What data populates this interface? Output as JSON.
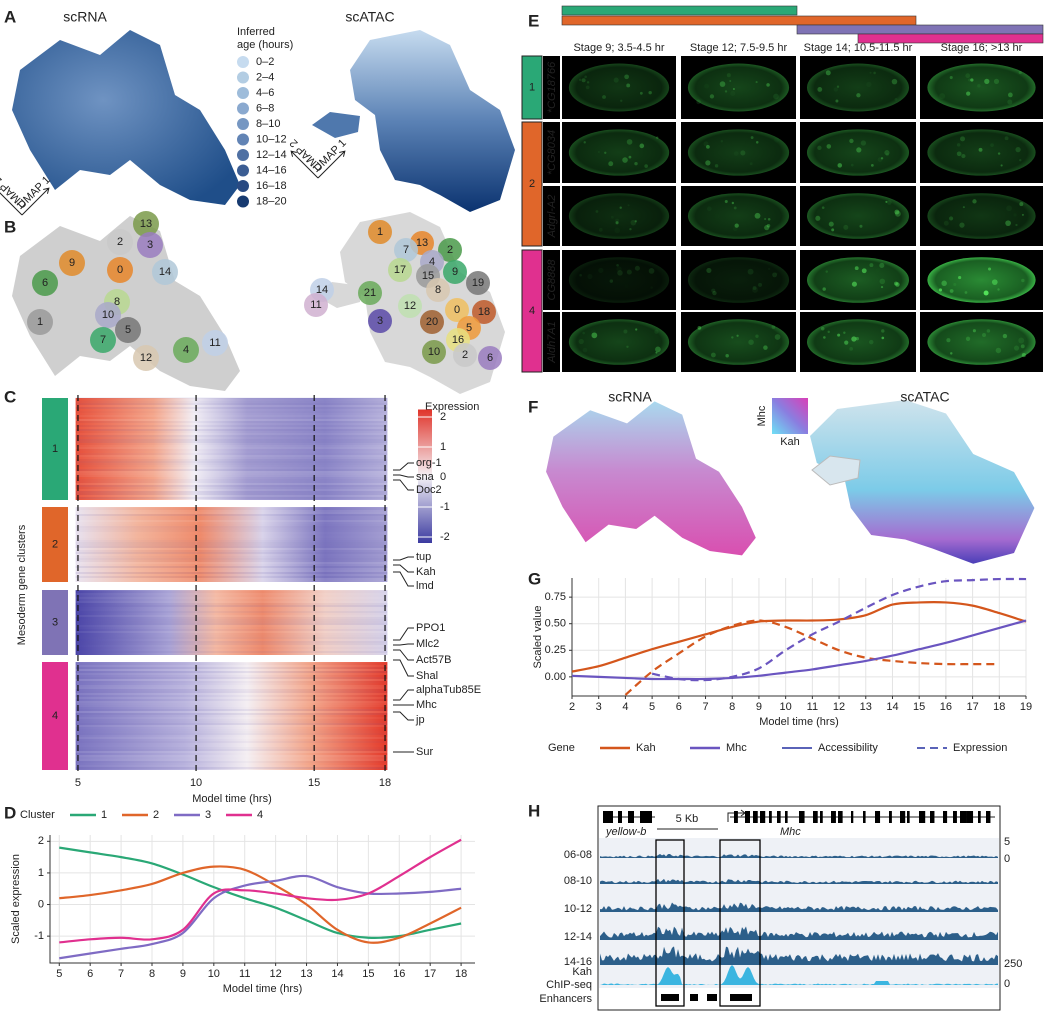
{
  "panel_labels": [
    "A",
    "B",
    "C",
    "D",
    "E",
    "F",
    "G",
    "H"
  ],
  "panel_a": {
    "titles": [
      "scRNA",
      "scATAC"
    ],
    "legend_title": [
      "Inferred",
      "age (hours)"
    ],
    "legend": [
      {
        "label": "0–2",
        "color": "#c6dbef"
      },
      {
        "label": "2–4",
        "color": "#b3cde3"
      },
      {
        "label": "4–6",
        "color": "#9ebcda"
      },
      {
        "label": "6–8",
        "color": "#8aa9cf"
      },
      {
        "label": "8–10",
        "color": "#7697c2"
      },
      {
        "label": "10–12",
        "color": "#6284b5"
      },
      {
        "label": "12–14",
        "color": "#4f70a3"
      },
      {
        "label": "14–16",
        "color": "#3b5d93"
      },
      {
        "label": "16–18",
        "color": "#294a82"
      },
      {
        "label": "18–20",
        "color": "#173a70"
      }
    ],
    "axes": [
      "UMAP 1",
      "UMAP 2"
    ]
  },
  "panel_b": {
    "scrna_clusters": [
      "13",
      "2",
      "3",
      "9",
      "0",
      "14",
      "6",
      "8",
      "10",
      "1",
      "7",
      "5",
      "12",
      "4",
      "11"
    ],
    "scatac_clusters": [
      "1",
      "13",
      "7",
      "2",
      "17",
      "4",
      "15",
      "9",
      "19",
      "8",
      "21",
      "14",
      "11",
      "12",
      "0",
      "18",
      "3",
      "20",
      "5",
      "16",
      "10",
      "2",
      "6"
    ]
  },
  "chart_data": [
    {
      "type": "heatmap",
      "xlabel": "Model time (hrs)",
      "ylabel": "Mesoderm gene clusters",
      "xlim": [
        4.9,
        18.1
      ],
      "xticks": [
        5,
        10,
        15,
        18
      ],
      "clusters": [
        {
          "name": "1",
          "color": "#2aa876"
        },
        {
          "name": "2",
          "color": "#e0662a"
        },
        {
          "name": "3",
          "color": "#7f73b5"
        },
        {
          "name": "4",
          "color": "#e0308f"
        }
      ],
      "genes": [
        "org-1",
        "sna",
        "Doc2",
        "tup",
        "Kah",
        "lmd",
        "PPO1",
        "Mlc2",
        "Act57B",
        "Shal",
        "alphaTub85E",
        "Mhc",
        "jp",
        "Sur"
      ],
      "colorbar": {
        "title": "Expression",
        "lim": [
          -2.2,
          2.25
        ],
        "ticks": [
          2,
          1,
          0,
          -1,
          -2
        ]
      }
    },
    {
      "type": "line",
      "xlabel": "Model time (hrs)",
      "ylabel": "Scaled expression",
      "legend_title": "Cluster",
      "xlim": [
        4.7,
        18.45
      ],
      "ylim": [
        -1.85,
        2.2
      ],
      "xticks": [
        5,
        6,
        7,
        8,
        9,
        10,
        11,
        12,
        13,
        14,
        15,
        16,
        17,
        18
      ],
      "yticks": [
        -1,
        0,
        1,
        2
      ],
      "grid": true,
      "x": [
        5,
        6,
        7,
        8,
        9,
        10,
        11,
        12,
        13,
        14,
        15,
        16,
        17,
        18
      ],
      "series": [
        {
          "name": "1",
          "color": "#2aa876",
          "values": [
            1.8,
            1.65,
            1.5,
            1.3,
            0.95,
            0.55,
            0.2,
            -0.1,
            -0.5,
            -0.9,
            -1.05,
            -1.0,
            -0.8,
            -0.6
          ]
        },
        {
          "name": "2",
          "color": "#e0662a",
          "values": [
            0.2,
            0.3,
            0.45,
            0.65,
            1.0,
            1.2,
            1.1,
            0.6,
            0.0,
            -0.8,
            -1.2,
            -1.05,
            -0.6,
            -0.1
          ]
        },
        {
          "name": "3",
          "color": "#7f6bc4",
          "values": [
            -1.7,
            -1.55,
            -1.4,
            -1.25,
            -0.9,
            0.2,
            0.6,
            0.75,
            0.9,
            0.55,
            0.35,
            0.35,
            0.4,
            0.5
          ]
        },
        {
          "name": "4",
          "color": "#e0308f",
          "values": [
            -1.2,
            -1.1,
            -1.05,
            -1.1,
            -0.8,
            0.35,
            0.45,
            0.35,
            0.2,
            0.15,
            0.35,
            0.9,
            1.5,
            2.05
          ]
        }
      ]
    },
    {
      "type": "line",
      "xlabel": "Model time (hrs)",
      "ylabel": "Scaled value",
      "legend_title": "Gene",
      "line_styles": [
        "Accessibility",
        "Expression"
      ],
      "xlim": [
        2,
        19
      ],
      "ylim": [
        -0.18,
        0.93
      ],
      "xticks": [
        2,
        3,
        4,
        5,
        6,
        7,
        8,
        9,
        10,
        11,
        12,
        13,
        14,
        15,
        16,
        17,
        18,
        19
      ],
      "yticks": [
        {
          "value": 0,
          "label": "0.00"
        },
        {
          "value": 0.25,
          "label": "0.25"
        },
        {
          "value": 0.5,
          "label": "0.50"
        },
        {
          "value": 0.75,
          "label": "0.75"
        }
      ],
      "grid": true,
      "x": [
        2,
        3,
        4,
        5,
        6,
        7,
        8,
        9,
        10,
        11,
        12,
        13,
        14,
        15,
        16,
        17,
        18,
        19
      ],
      "series": [
        {
          "name": "Kah",
          "color": "#d4561c",
          "accessibility": [
            0.05,
            0.1,
            0.18,
            0.26,
            0.33,
            0.4,
            0.47,
            0.52,
            0.53,
            0.53,
            0.54,
            0.58,
            0.68,
            0.7,
            0.7,
            0.67,
            0.6,
            0.52
          ],
          "expression": [
            null,
            null,
            -0.17,
            0.05,
            0.22,
            0.38,
            0.48,
            0.53,
            0.47,
            0.36,
            0.25,
            0.18,
            0.15,
            0.13,
            0.12,
            0.12,
            0.12,
            null
          ]
        },
        {
          "name": "Mhc",
          "color": "#6a55c0",
          "accessibility": [
            0.01,
            0.0,
            -0.01,
            -0.02,
            -0.02,
            -0.02,
            -0.01,
            0.01,
            0.04,
            0.07,
            0.11,
            0.15,
            0.2,
            0.26,
            0.32,
            0.39,
            0.46,
            0.53
          ],
          "expression": [
            null,
            null,
            null,
            0.03,
            -0.02,
            -0.03,
            0.0,
            0.08,
            0.25,
            0.4,
            0.52,
            0.65,
            0.77,
            0.85,
            0.9,
            0.91,
            0.92,
            0.92
          ]
        }
      ]
    }
  ],
  "panel_e": {
    "stages": [
      "Stage 9; 3.5-4.5 hr",
      "Stage 12; 7.5-9.5 hr",
      "Stage 14; 10.5-11.5 hr",
      "Stage 16; >13 hr"
    ],
    "groups": [
      "1",
      "2",
      "4"
    ],
    "genes": [
      "*CG18766",
      "*CG8034",
      "Adgrl-A2",
      "CG8888",
      "Aldh7A1"
    ]
  },
  "panel_f": {
    "titles": [
      "scRNA",
      "scATAC"
    ],
    "key_y": "Mhc",
    "key_x": "Kah"
  },
  "panel_h": {
    "scale_label": "5 Kb",
    "genes": [
      "yellow-b",
      "Mhc"
    ],
    "tracks": [
      "06-08",
      "08-10",
      "10-12",
      "12-14",
      "14-16"
    ],
    "chip_label": [
      "Kah",
      "ChIP-seq"
    ],
    "enhancer_label": "Enhancers",
    "atac_scale": [
      5,
      0
    ],
    "chip_scale": [
      250,
      0
    ]
  }
}
